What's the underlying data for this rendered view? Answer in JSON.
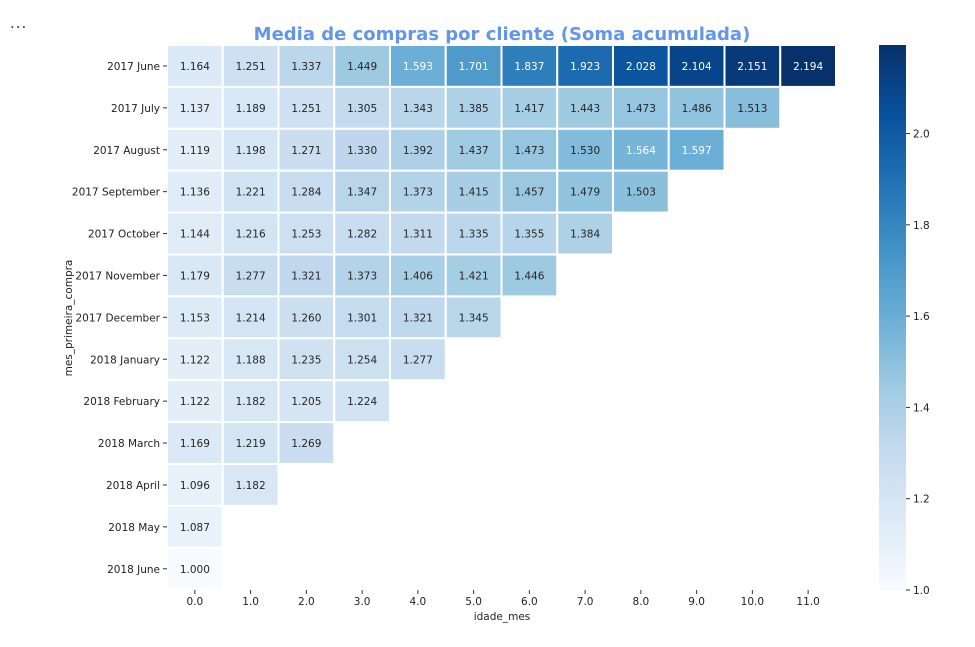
{
  "ellipsis": "...",
  "chart_data": {
    "type": "heatmap",
    "title": "Media de compras por cliente (Soma acumulada)",
    "xlabel": "idade_mes",
    "ylabel": "mes_primeira_compra",
    "x": [
      "0.0",
      "1.0",
      "2.0",
      "3.0",
      "4.0",
      "5.0",
      "6.0",
      "7.0",
      "8.0",
      "9.0",
      "10.0",
      "11.0"
    ],
    "y": [
      "2017 June",
      "2017 July",
      "2017 August",
      "2017 September",
      "2017 October",
      "2017 November",
      "2017 December",
      "2018 January",
      "2018 February",
      "2018 March",
      "2018 April",
      "2018 May",
      "2018 June"
    ],
    "values": [
      [
        1.164,
        1.251,
        1.337,
        1.449,
        1.593,
        1.701,
        1.837,
        1.923,
        2.028,
        2.104,
        2.151,
        2.194
      ],
      [
        1.137,
        1.189,
        1.251,
        1.305,
        1.343,
        1.385,
        1.417,
        1.443,
        1.473,
        1.486,
        1.513
      ],
      [
        1.119,
        1.198,
        1.271,
        1.33,
        1.392,
        1.437,
        1.473,
        1.53,
        1.564,
        1.597
      ],
      [
        1.136,
        1.221,
        1.284,
        1.347,
        1.373,
        1.415,
        1.457,
        1.479,
        1.503
      ],
      [
        1.144,
        1.216,
        1.253,
        1.282,
        1.311,
        1.335,
        1.355,
        1.384
      ],
      [
        1.179,
        1.277,
        1.321,
        1.373,
        1.406,
        1.421,
        1.446
      ],
      [
        1.153,
        1.214,
        1.26,
        1.301,
        1.321,
        1.345
      ],
      [
        1.122,
        1.188,
        1.235,
        1.254,
        1.277
      ],
      [
        1.122,
        1.182,
        1.205,
        1.224
      ],
      [
        1.169,
        1.219,
        1.269
      ],
      [
        1.096,
        1.182
      ],
      [
        1.087
      ],
      [
        1.0
      ]
    ],
    "colormap": "Blues",
    "vmin": 1.0,
    "vmax": 2.194,
    "colorbar_ticks": [
      "1.0",
      "1.2",
      "1.4",
      "1.6",
      "1.8",
      "2.0"
    ],
    "grid": false
  }
}
